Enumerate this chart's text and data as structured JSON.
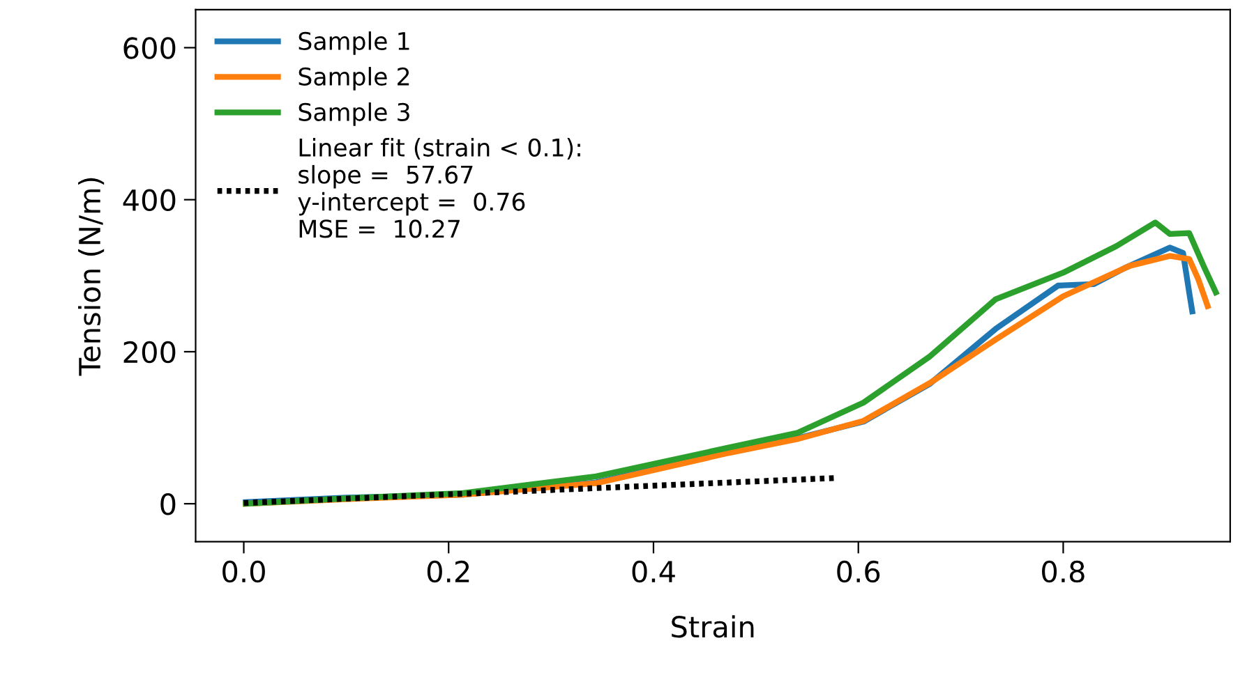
{
  "chart_data": {
    "type": "line",
    "xlabel": "Strain",
    "ylabel": "Tension (N/m)",
    "xlim": [
      -0.047,
      0.963
    ],
    "ylim": [
      -50,
      650
    ],
    "xticks": [
      {
        "value": 0,
        "label": "0.0"
      },
      0.2,
      0.4,
      0.6,
      0.8
    ],
    "yticks": [
      0,
      200,
      400,
      600
    ],
    "series": [
      {
        "name": "Sample 1",
        "color": "#1f77b4",
        "x": [
          0.002,
          0.1,
          0.214,
          0.344,
          0.474,
          0.54,
          0.605,
          0.67,
          0.734,
          0.795,
          0.83,
          0.86,
          0.904,
          0.917,
          0.923,
          0.926
        ],
        "values": [
          2,
          8,
          12,
          28,
          68,
          86,
          108,
          158,
          230,
          287,
          289,
          310,
          337,
          330,
          278,
          253
        ]
      },
      {
        "name": "Sample 2",
        "color": "#ff7f0e",
        "x": [
          0.002,
          0.1,
          0.214,
          0.344,
          0.474,
          0.54,
          0.605,
          0.67,
          0.734,
          0.8,
          0.865,
          0.904,
          0.923,
          0.932,
          0.941
        ],
        "values": [
          0,
          6,
          12,
          27,
          67,
          85,
          109,
          159,
          216,
          273,
          313,
          326,
          322,
          295,
          260
        ]
      },
      {
        "name": "Sample 3",
        "color": "#2ca02c",
        "x": [
          0.002,
          0.1,
          0.214,
          0.344,
          0.474,
          0.54,
          0.605,
          0.67,
          0.734,
          0.8,
          0.852,
          0.89,
          0.904,
          0.923,
          0.937,
          0.949
        ],
        "values": [
          0,
          7,
          14,
          36,
          74,
          93,
          133,
          194,
          269,
          304,
          339,
          370,
          355,
          356,
          313,
          278
        ]
      },
      {
        "name": "Linear fit (strain < 0.1):\nslope =  57.67\ny-intercept =  0.76\nMSE =  10.27",
        "color": "#000000",
        "line_style": "dotted",
        "x": [
          0.0,
          0.58
        ],
        "values": [
          1,
          34
        ]
      }
    ],
    "legend": "top left",
    "grid": false
  }
}
